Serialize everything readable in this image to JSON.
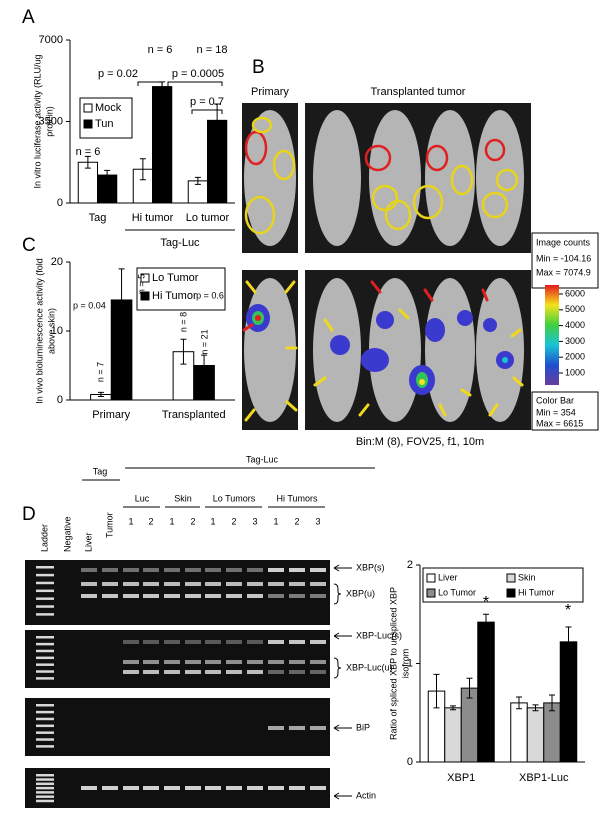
{
  "panel_labels": [
    "A",
    "B",
    "C",
    "D"
  ],
  "chart_data": [
    {
      "type": "bar",
      "y_label": [
        "In vitro luciferase activity (RLU/ug",
        "protein)"
      ],
      "categories": [
        "Tag",
        "Hi tumor",
        "Lo tumor"
      ],
      "group_label": "Tag-Luc",
      "series": [
        {
          "name": "Mock",
          "color": "#ffffff",
          "values": [
            1750,
            1450,
            950
          ],
          "errors": [
            250,
            450,
            150
          ]
        },
        {
          "name": "Tun",
          "color": "#000000",
          "values": [
            1200,
            5000,
            3550
          ],
          "errors": [
            200,
            200,
            700
          ]
        }
      ],
      "ylim": [
        0,
        7000
      ],
      "yticks": [
        0,
        3500,
        7000
      ],
      "annotations": [
        "n = 6",
        "n = 6",
        "n = 18",
        "p = 0.02",
        "p = 0.0005",
        "p = 0.7"
      ]
    },
    {
      "type": "bar",
      "y_label": [
        "In vivo bioluminescence activity (fold",
        "above skin)"
      ],
      "categories": [
        "Primary",
        "Transplanted"
      ],
      "series": [
        {
          "name": "Lo Tumor",
          "color": "#ffffff",
          "values": [
            0.8,
            7
          ],
          "errors": [
            0.3,
            1.8
          ]
        },
        {
          "name": "Hi Tumor",
          "color": "#000000",
          "values": [
            14.5,
            5
          ],
          "errors": [
            4.5,
            1.5
          ]
        }
      ],
      "ylim": [
        0,
        20
      ],
      "yticks": [
        0,
        10,
        20
      ],
      "annotations": [
        "p = 0.04",
        "n = 7",
        "n = 5",
        "n = 8",
        "p = 0.6",
        "n = 21"
      ]
    },
    {
      "type": "bar",
      "y_label": [
        "Ratio of spliced XBP to unspliced XBP",
        "isofrom"
      ],
      "categories": [
        "XBP1",
        "XBP1-Luc"
      ],
      "series": [
        {
          "name": "Liver",
          "color": "#ffffff",
          "values": [
            0.72,
            0.6
          ],
          "errors": [
            0.17,
            0.06
          ]
        },
        {
          "name": "Skin",
          "color": "#d9d9d9",
          "values": [
            0.55,
            0.55
          ],
          "errors": [
            0.02,
            0.03
          ]
        },
        {
          "name": "Lo Tumor",
          "color": "#8c8c8c",
          "values": [
            0.75,
            0.6
          ],
          "errors": [
            0.1,
            0.08
          ]
        },
        {
          "name": "Hi Tumor",
          "color": "#000000",
          "values": [
            1.42,
            1.22
          ],
          "errors": [
            0.08,
            0.15
          ]
        }
      ],
      "ylim": [
        0,
        2
      ],
      "yticks": [
        0,
        1,
        2
      ],
      "annotations": [
        "*",
        "*"
      ]
    }
  ],
  "imaging": {
    "primary_label": "Primary",
    "transplanted_label": "Transplanted tumor",
    "image_counts": {
      "title": "Image counts",
      "min": "Min = -104.16",
      "max": "Max = 7074.9"
    },
    "color_bar": {
      "ticks": [
        6000,
        5000,
        4000,
        3000,
        2000,
        1000
      ],
      "title": "Color Bar",
      "min": "Min = 354",
      "max": "Max = 6615"
    },
    "settings": "Bin:M (8), FOV25, f1, 10m"
  },
  "gel": {
    "lanes": [
      "Ladder",
      "Negative",
      "Liver",
      "Tumor",
      "1",
      "2",
      "1",
      "2",
      "1",
      "2",
      "3",
      "1",
      "2",
      "3"
    ],
    "groups": [
      "Tag",
      "Luc",
      "Skin",
      "Lo Tumors",
      "Hi Tumors",
      "Tag-Luc"
    ],
    "bands": [
      "XBP(s)",
      "XBP(u)",
      "XBP-Luc(s)",
      "XBP-Luc(u)",
      "BiP",
      "Actin"
    ]
  }
}
